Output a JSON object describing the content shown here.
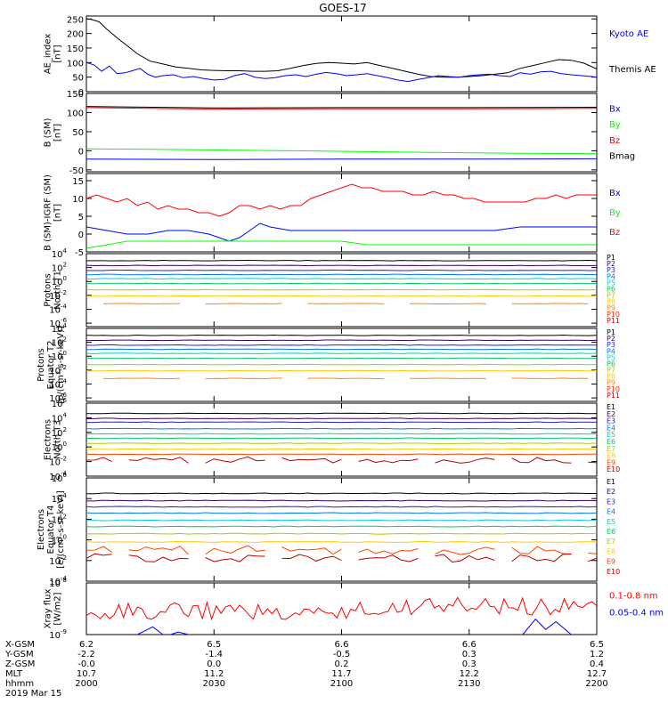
{
  "title": "GOES-17",
  "colors": {
    "axis": "#000000",
    "black": "#000000",
    "blue": "#0000ff",
    "green": "#00ff00",
    "red": "#ff0000",
    "darkred": "#bb0000"
  },
  "chart_data": [
    {
      "type": "line",
      "id": "ae",
      "ylabel": [
        "AE_index",
        "[nT]"
      ],
      "ylim": [
        0,
        260
      ],
      "yticks": [
        "250",
        "200",
        "150",
        "100",
        "50",
        "0"
      ],
      "ytick_values": [
        250,
        200,
        150,
        100,
        50,
        0
      ],
      "x": [
        2000,
        2200
      ],
      "legend": [
        {
          "name": "Kyoto AE",
          "color": "#0000ff"
        },
        {
          "name": "Themis AE",
          "color": "#000000"
        }
      ],
      "series": [
        {
          "name": "Themis AE",
          "color": "#000000",
          "x": [
            2000,
            2002,
            2005,
            2008,
            2012,
            2015,
            2020,
            2025,
            2030,
            2035,
            2040,
            2045,
            2050,
            2055,
            2060,
            2065,
            2070,
            2075,
            2080,
            2085,
            2090,
            2095,
            2100,
            2105,
            2110,
            2115,
            2120,
            2125,
            2130,
            2135,
            2140,
            2145,
            2150,
            2155,
            2160,
            2165,
            2170,
            2175,
            2180,
            2185,
            2190,
            2195,
            2200
          ],
          "y": [
            250,
            248,
            240,
            215,
            185,
            165,
            130,
            105,
            95,
            85,
            80,
            75,
            73,
            72,
            72,
            70,
            70,
            72,
            80,
            90,
            97,
            100,
            98,
            95,
            100,
            90,
            80,
            70,
            60,
            52,
            50,
            50,
            52,
            55,
            60,
            65,
            80,
            90,
            100,
            110,
            108,
            98,
            78
          ]
        },
        {
          "name": "Kyoto AE",
          "color": "#0000ff",
          "x": [
            2000,
            2003,
            2006,
            2009,
            2012,
            2015,
            2018,
            2021,
            2024,
            2027,
            2030,
            2034,
            2038,
            2042,
            2046,
            2050,
            2054,
            2058,
            2062,
            2066,
            2070,
            2074,
            2078,
            2082,
            2086,
            2090,
            2094,
            2098,
            2102,
            2106,
            2110,
            2114,
            2118,
            2122,
            2126,
            2130,
            2134,
            2138,
            2142,
            2146,
            2150,
            2154,
            2158,
            2162,
            2166,
            2170,
            2174,
            2178,
            2182,
            2186,
            2190,
            2194,
            2198,
            2200
          ],
          "y": [
            100,
            92,
            70,
            88,
            62,
            65,
            72,
            80,
            60,
            50,
            55,
            58,
            48,
            52,
            45,
            40,
            42,
            55,
            62,
            50,
            45,
            48,
            55,
            58,
            52,
            60,
            66,
            62,
            55,
            58,
            62,
            55,
            48,
            40,
            35,
            42,
            48,
            55,
            52,
            50,
            55,
            58,
            60,
            55,
            52,
            65,
            60,
            68,
            70,
            62,
            58,
            55,
            52,
            50
          ]
        }
      ]
    },
    {
      "type": "line",
      "id": "b_sm",
      "ylabel": [
        "B (SM)",
        "[nT]"
      ],
      "ylim": [
        -55,
        150
      ],
      "yticks": [
        "150",
        "100",
        "50",
        "0",
        "-50"
      ],
      "ytick_values": [
        150,
        100,
        50,
        0,
        -50
      ],
      "x": [
        2000,
        2200
      ],
      "legend": [
        {
          "name": "Bx",
          "color": "#0000ff"
        },
        {
          "name": "By",
          "color": "#00ff00"
        },
        {
          "name": "Bz",
          "color": "#ff0000"
        },
        {
          "name": "Bmag",
          "color": "#000000"
        }
      ],
      "series": [
        {
          "name": "Bmag",
          "color": "#000000",
          "x": [
            2000,
            2050,
            2100,
            2150,
            2200
          ],
          "y": [
            116,
            112,
            113,
            113,
            114
          ]
        },
        {
          "name": "Bz",
          "color": "#ff0000",
          "x": [
            2000,
            2050,
            2100,
            2150,
            2200
          ],
          "y": [
            113,
            109,
            110,
            110,
            111
          ]
        },
        {
          "name": "By",
          "color": "#00ff00",
          "x": [
            2000,
            2040,
            2080,
            2120,
            2160,
            2200
          ],
          "y": [
            5,
            3,
            0,
            -3,
            -6,
            -8
          ]
        },
        {
          "name": "Bx",
          "color": "#0000ff",
          "x": [
            2000,
            2050,
            2100,
            2150,
            2200
          ],
          "y": [
            -22,
            -23,
            -22,
            -22,
            -21
          ]
        }
      ]
    },
    {
      "type": "line",
      "id": "b_igrf",
      "ylabel": [
        "B (SM)-IGRF (SM)",
        "[nT]"
      ],
      "ylim": [
        -5,
        17
      ],
      "yticks": [
        "15",
        "10",
        "5",
        "0",
        "-5"
      ],
      "ytick_values": [
        15,
        10,
        5,
        0,
        -5
      ],
      "x": [
        2000,
        2200
      ],
      "legend": [
        {
          "name": "Bx",
          "color": "#0000ff"
        },
        {
          "name": "By",
          "color": "#00ff00"
        },
        {
          "name": "Bz",
          "color": "#ff0000"
        }
      ],
      "series": [
        {
          "name": "Bz",
          "color": "#ff0000",
          "x": [
            2000,
            2004,
            2008,
            2012,
            2016,
            2020,
            2024,
            2028,
            2032,
            2036,
            2040,
            2044,
            2048,
            2052,
            2056,
            2060,
            2064,
            2068,
            2072,
            2076,
            2080,
            2084,
            2088,
            2092,
            2096,
            2100,
            2104,
            2108,
            2112,
            2116,
            2120,
            2124,
            2128,
            2132,
            2136,
            2140,
            2144,
            2148,
            2152,
            2156,
            2160,
            2164,
            2168,
            2172,
            2176,
            2180,
            2184,
            2188,
            2192,
            2196,
            2200
          ],
          "y": [
            10,
            11,
            10,
            9,
            10,
            8,
            9,
            7,
            8,
            7,
            7,
            6,
            6,
            5,
            6,
            8,
            8,
            7,
            8,
            7,
            8,
            8,
            10,
            11,
            12,
            13,
            14,
            13,
            13,
            12,
            12,
            12,
            11,
            11,
            12,
            11,
            11,
            10,
            10,
            9,
            9,
            9,
            9,
            9,
            10,
            10,
            11,
            10,
            11,
            11,
            11
          ]
        },
        {
          "name": "Bx",
          "color": "#0000ff",
          "x": [
            2000,
            2008,
            2016,
            2024,
            2032,
            2040,
            2048,
            2052,
            2056,
            2060,
            2064,
            2068,
            2072,
            2080,
            2090,
            2100,
            2110,
            2120,
            2130,
            2140,
            2150,
            2160,
            2170,
            2180,
            2190,
            2200
          ],
          "y": [
            2,
            1,
            0,
            0,
            1,
            1,
            0,
            -1,
            -2,
            -1,
            1,
            3,
            2,
            1,
            1,
            1,
            1,
            1,
            1,
            1,
            1,
            1,
            2,
            2,
            2,
            2
          ]
        },
        {
          "name": "By",
          "color": "#00ff00",
          "x": [
            2000,
            2008,
            2016,
            2024,
            2032,
            2040,
            2048,
            2056,
            2064,
            2072,
            2080,
            2090,
            2100,
            2110,
            2120,
            2130,
            2140,
            2150,
            2160,
            2170,
            2180,
            2190,
            2200
          ],
          "y": [
            -4,
            -3,
            -2,
            -2,
            -2,
            -2,
            -2,
            -2,
            -2,
            -2,
            -2,
            -2,
            -2,
            -3,
            -3,
            -3,
            -3,
            -3,
            -3,
            -3,
            -3,
            -3,
            -3
          ]
        }
      ]
    },
    {
      "type": "line",
      "id": "protons_t1",
      "ylabel": [
        "Protons",
        "North T1"
      ],
      "yscale": "log",
      "ylim_exp": [
        -6.5,
        4
      ],
      "yticks_exp": [
        4,
        2,
        0,
        -2,
        -4,
        -6
      ],
      "x": [
        2000,
        2200
      ],
      "channels": [
        {
          "name": "P1",
          "color": "#000000",
          "level": 3.0
        },
        {
          "name": "P2",
          "color": "#3a0060",
          "level": 2.3
        },
        {
          "name": "P3",
          "color": "#2222cc",
          "level": 1.6
        },
        {
          "name": "P4",
          "color": "#0077ff",
          "level": 1.0
        },
        {
          "name": "P5",
          "color": "#00cccc",
          "level": 0.4
        },
        {
          "name": "P6",
          "color": "#00cc66",
          "level": -0.3
        },
        {
          "name": "P7",
          "color": "#aacc00",
          "level": -1.2
        },
        {
          "name": "P8",
          "color": "#ffcc00",
          "level": -2.1
        },
        {
          "name": "P9",
          "color": "#ff8800",
          "level": -3.2,
          "gaps": true
        },
        {
          "name": "P10",
          "color": "#ff2200",
          "level": null
        },
        {
          "name": "P11",
          "color": "#cc0000",
          "level": null
        }
      ]
    },
    {
      "type": "line",
      "id": "protons_t2",
      "ylabel": [
        "Protons",
        "Equator T2",
        "[p/(cm²-s-sr-keV)]"
      ],
      "yscale": "log",
      "ylim_exp": [
        -6.5,
        4
      ],
      "yticks_exp": [
        4,
        2,
        0,
        -2,
        -4,
        -6
      ],
      "x": [
        2000,
        2200
      ],
      "channels": [
        {
          "name": "P1",
          "color": "#000000",
          "level": 3.0
        },
        {
          "name": "P2",
          "color": "#3a0060",
          "level": 2.3
        },
        {
          "name": "P3",
          "color": "#2222cc",
          "level": 1.6
        },
        {
          "name": "P4",
          "color": "#0077ff",
          "level": 1.0
        },
        {
          "name": "P5",
          "color": "#00cccc",
          "level": 0.4
        },
        {
          "name": "P6",
          "color": "#00cc66",
          "level": -0.3
        },
        {
          "name": "P7",
          "color": "#aacc00",
          "level": -1.2
        },
        {
          "name": "P8",
          "color": "#ffcc00",
          "level": -2.1
        },
        {
          "name": "P9",
          "color": "#ff8800",
          "level": -3.2,
          "gaps": true
        },
        {
          "name": "P10",
          "color": "#ff2200",
          "level": null
        },
        {
          "name": "P11",
          "color": "#cc0000",
          "level": null
        }
      ]
    },
    {
      "type": "line",
      "id": "electrons_t3",
      "ylabel": [
        "Electrons",
        "North T3"
      ],
      "yscale": "log",
      "ylim_exp": [
        -4,
        6
      ],
      "yticks_exp": [
        6,
        4,
        2,
        0,
        -2,
        -4
      ],
      "x": [
        2000,
        2200
      ],
      "channels": [
        {
          "name": "E1",
          "color": "#000000",
          "level": 4.6
        },
        {
          "name": "E2",
          "color": "#3a0060",
          "level": 3.9
        },
        {
          "name": "E3",
          "color": "#2222cc",
          "level": 3.4
        },
        {
          "name": "E4",
          "color": "#0077ff",
          "level": 2.5
        },
        {
          "name": "E5",
          "color": "#00cccc",
          "level": 1.8
        },
        {
          "name": "E6",
          "color": "#00cc66",
          "level": 1.2
        },
        {
          "name": "E7",
          "color": "#aacc00",
          "level": 0.5
        },
        {
          "name": "E8",
          "color": "#ffcc00",
          "level": -0.3
        },
        {
          "name": "E9",
          "color": "#ff4400",
          "level": -1.0
        },
        {
          "name": "E10",
          "color": "#bb0000",
          "level": -1.8,
          "noisy": true
        }
      ]
    },
    {
      "type": "line",
      "id": "electrons_t4",
      "ylabel": [
        "Electrons",
        "Equator T4",
        "[e/(cm²-s-sr-keV)]"
      ],
      "yscale": "log",
      "ylim_exp": [
        -4,
        6
      ],
      "yticks_exp": [
        6,
        4,
        2,
        0,
        -2,
        -4
      ],
      "x": [
        2000,
        2200
      ],
      "channels": [
        {
          "name": "E1",
          "color": "#000000",
          "level": 4.5
        },
        {
          "name": "E2",
          "color": "#3a0060",
          "level": 3.8
        },
        {
          "name": "E3",
          "color": "#2222cc",
          "level": 3.2
        },
        {
          "name": "E4",
          "color": "#0077ff",
          "level": 2.6
        },
        {
          "name": "E5",
          "color": "#00cccc",
          "level": 1.9
        },
        {
          "name": "E6",
          "color": "#00cc66",
          "level": 1.3
        },
        {
          "name": "E7",
          "color": "#aacc00",
          "level": 0.6
        },
        {
          "name": "E8",
          "color": "#ffcc00",
          "level": -0.2
        },
        {
          "name": "E9",
          "color": "#ff4400",
          "level": -1.0,
          "noisy": true
        },
        {
          "name": "E10",
          "color": "#bb0000",
          "level": -1.7,
          "noisy": true
        }
      ]
    },
    {
      "type": "line",
      "id": "xray",
      "ylabel": [
        "Xray flux",
        "[W/m2]"
      ],
      "yscale": "log",
      "ylim_exp": [
        -9,
        -8
      ],
      "yticks_exp": [
        -8,
        -9
      ],
      "x": [
        2000,
        2200
      ],
      "legend": [
        {
          "name": "0.1-0.8 nm",
          "color": "#ff0000"
        },
        {
          "name": "0.05-0.4 nm",
          "color": "#0000ff"
        }
      ]
    }
  ],
  "footer": {
    "row_labels": [
      "X-GSM",
      "Y-GSM",
      "Z-GSM",
      "MLT",
      "hhmm"
    ],
    "date": "2019 Mar 15",
    "columns": [
      {
        "values": [
          "6.2",
          "-2.2",
          "-0.0",
          "10.7",
          "2000"
        ]
      },
      {
        "values": [
          "6.5",
          "-1.4",
          "0.0",
          "11.2",
          "2030"
        ]
      },
      {
        "values": [
          "6.6",
          "-0.5",
          "0.2",
          "11.7",
          "2100"
        ]
      },
      {
        "values": [
          "6.6",
          "0.3",
          "0.3",
          "12.2",
          "2130"
        ]
      },
      {
        "values": [
          "6.5",
          "1.2",
          "0.4",
          "12.7",
          "2200"
        ]
      }
    ]
  }
}
